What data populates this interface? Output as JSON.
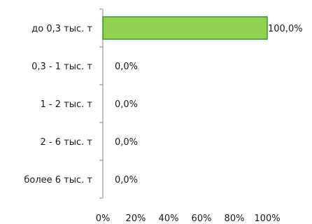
{
  "chart_data": {
    "type": "bar",
    "orientation": "horizontal",
    "categories": [
      "до 0,3 тыс. т",
      "0,3 - 1 тыс. т",
      "1 - 2 тыс. т",
      "2 - 6 тыс. т",
      "более 6 тыс. т"
    ],
    "values": [
      100,
      0,
      0,
      0,
      0
    ],
    "value_labels": [
      "100,0%",
      "0,0%",
      "0,0%",
      "0,0%",
      "0,0%"
    ],
    "x_ticks": [
      "0%",
      "20%",
      "40%",
      "60%",
      "80%",
      "100%"
    ],
    "xlim": [
      0,
      100
    ],
    "grid": false,
    "bar_color": "#92d050",
    "bar_border_color": "#2e9e2e",
    "axis_color": "#808080"
  }
}
